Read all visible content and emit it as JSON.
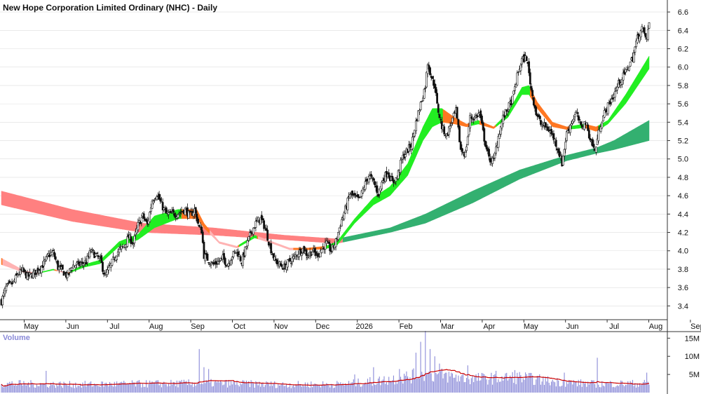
{
  "title": "New Hope Corporation Limited Ordinary (NHC) - Daily",
  "volume_label": "Volume",
  "colors": {
    "up_candle": "#ffffff",
    "down_candle": "#111111",
    "short_bull": "#22ee22",
    "short_bear": "#ff7722",
    "short_pale_bear": "#ffb3b3",
    "long_bull": "#33b070",
    "long_bear": "#ff8080",
    "volume_bar": "#8a8ad8",
    "volume_ma": "#cc0000",
    "grid": "#dddddd",
    "panel_border": "#333333"
  },
  "chart_data": {
    "type": "candlestick",
    "title": "New Hope Corporation Limited Ordinary (NHC) - Daily",
    "price_axis": {
      "ticks": [
        "3.4",
        "3.6",
        "3.8",
        "4.0",
        "4.2",
        "4.4",
        "4.6",
        "4.8",
        "5.0",
        "5.2",
        "5.4",
        "5.6",
        "5.8",
        "6.0",
        "6.2",
        "6.4",
        "6.6"
      ],
      "ylim": [
        3.25,
        6.7
      ]
    },
    "time_axis": {
      "labels": [
        "May",
        "Jun",
        "Jul",
        "Aug",
        "Sep",
        "Oct",
        "Nov",
        "Dec",
        "2026",
        "Feb",
        "Mar",
        "Apr",
        "May",
        "Jun",
        "Jul",
        "Aug",
        "Sep"
      ],
      "start_label_index": 0.7
    },
    "price_anchors": [
      [
        0,
        3.45
      ],
      [
        4,
        3.6
      ],
      [
        10,
        3.65
      ],
      [
        14,
        3.75
      ],
      [
        18,
        3.78
      ],
      [
        22,
        3.72
      ],
      [
        26,
        3.74
      ],
      [
        30,
        3.78
      ],
      [
        36,
        3.86
      ],
      [
        40,
        3.95
      ],
      [
        44,
        3.98
      ],
      [
        48,
        3.82
      ],
      [
        52,
        3.78
      ],
      [
        56,
        3.72
      ],
      [
        60,
        3.84
      ],
      [
        66,
        3.85
      ],
      [
        72,
        3.88
      ],
      [
        76,
        4.0
      ],
      [
        80,
        3.95
      ],
      [
        84,
        3.9
      ],
      [
        88,
        3.72
      ],
      [
        92,
        3.82
      ],
      [
        98,
        3.98
      ],
      [
        104,
        4.05
      ],
      [
        108,
        4.15
      ],
      [
        112,
        4.08
      ],
      [
        116,
        4.28
      ],
      [
        120,
        4.38
      ],
      [
        124,
        4.28
      ],
      [
        128,
        4.55
      ],
      [
        132,
        4.62
      ],
      [
        136,
        4.5
      ],
      [
        140,
        4.4
      ],
      [
        144,
        4.4
      ],
      [
        148,
        4.4
      ],
      [
        152,
        4.42
      ],
      [
        156,
        4.45
      ],
      [
        160,
        4.38
      ],
      [
        164,
        4.45
      ],
      [
        168,
        4.25
      ],
      [
        170,
        4.22
      ],
      [
        172,
        3.95
      ],
      [
        176,
        3.9
      ],
      [
        180,
        3.85
      ],
      [
        184,
        3.88
      ],
      [
        188,
        3.92
      ],
      [
        192,
        3.85
      ],
      [
        196,
        3.95
      ],
      [
        200,
        4.0
      ],
      [
        204,
        3.88
      ],
      [
        208,
        4.05
      ],
      [
        212,
        4.2
      ],
      [
        216,
        4.3
      ],
      [
        220,
        4.35
      ],
      [
        224,
        4.25
      ],
      [
        228,
        4.05
      ],
      [
        232,
        3.9
      ],
      [
        236,
        3.85
      ],
      [
        240,
        3.82
      ],
      [
        244,
        3.88
      ],
      [
        248,
        3.92
      ],
      [
        252,
        3.98
      ],
      [
        256,
        4.02
      ],
      [
        260,
        3.95
      ],
      [
        264,
        4.0
      ],
      [
        268,
        3.95
      ],
      [
        272,
        4.02
      ],
      [
        276,
        4.08
      ],
      [
        280,
        4.0
      ],
      [
        284,
        4.1
      ],
      [
        288,
        4.3
      ],
      [
        292,
        4.45
      ],
      [
        296,
        4.62
      ],
      [
        300,
        4.58
      ],
      [
        304,
        4.55
      ],
      [
        308,
        4.7
      ],
      [
        312,
        4.82
      ],
      [
        316,
        4.75
      ],
      [
        320,
        4.62
      ],
      [
        324,
        4.78
      ],
      [
        328,
        4.86
      ],
      [
        332,
        4.74
      ],
      [
        336,
        4.8
      ],
      [
        340,
        5.0
      ],
      [
        344,
        5.08
      ],
      [
        348,
        5.15
      ],
      [
        352,
        5.4
      ],
      [
        356,
        5.6
      ],
      [
        360,
        5.8
      ],
      [
        362,
        6.05
      ],
      [
        366,
        5.85
      ],
      [
        368,
        5.8
      ],
      [
        370,
        5.58
      ],
      [
        374,
        5.35
      ],
      [
        378,
        5.25
      ],
      [
        382,
        5.4
      ],
      [
        386,
        5.52
      ],
      [
        390,
        5.1
      ],
      [
        394,
        5.05
      ],
      [
        398,
        5.45
      ],
      [
        402,
        5.45
      ],
      [
        406,
        5.5
      ],
      [
        410,
        5.22
      ],
      [
        414,
        5.0
      ],
      [
        418,
        4.98
      ],
      [
        422,
        5.25
      ],
      [
        426,
        5.45
      ],
      [
        430,
        5.55
      ],
      [
        434,
        5.65
      ],
      [
        438,
        5.9
      ],
      [
        442,
        6.08
      ],
      [
        446,
        6.1
      ],
      [
        450,
        5.75
      ],
      [
        454,
        5.5
      ],
      [
        458,
        5.38
      ],
      [
        462,
        5.35
      ],
      [
        466,
        5.3
      ],
      [
        470,
        5.2
      ],
      [
        474,
        5.05
      ],
      [
        476,
        4.95
      ],
      [
        480,
        5.28
      ],
      [
        484,
        5.4
      ],
      [
        488,
        5.5
      ],
      [
        492,
        5.35
      ],
      [
        496,
        5.4
      ],
      [
        500,
        5.22
      ],
      [
        504,
        5.08
      ],
      [
        508,
        5.35
      ],
      [
        512,
        5.5
      ],
      [
        516,
        5.6
      ],
      [
        520,
        5.7
      ],
      [
        524,
        5.82
      ],
      [
        528,
        5.9
      ],
      [
        532,
        6.0
      ],
      [
        536,
        6.1
      ],
      [
        540,
        6.32
      ],
      [
        544,
        6.42
      ],
      [
        548,
        6.3
      ],
      [
        550,
        6.48
      ]
    ],
    "short_band": {
      "anchors": [
        [
          0,
          3.92,
          3.85
        ],
        [
          20,
          3.78,
          3.76
        ],
        [
          30,
          3.76,
          3.75
        ],
        [
          44,
          3.8,
          3.79
        ],
        [
          56,
          3.76,
          3.75
        ],
        [
          70,
          3.85,
          3.82
        ],
        [
          84,
          3.9,
          3.86
        ],
        [
          100,
          4.1,
          4.05
        ],
        [
          116,
          4.18,
          4.12
        ],
        [
          130,
          4.38,
          4.25
        ],
        [
          150,
          4.45,
          4.35
        ],
        [
          166,
          4.45,
          4.35
        ],
        [
          172,
          4.3,
          4.25
        ],
        [
          185,
          4.1,
          4.08
        ],
        [
          200,
          4.05,
          4.03
        ],
        [
          215,
          4.17,
          4.14
        ],
        [
          230,
          4.1,
          4.08
        ],
        [
          245,
          4.03,
          4.01
        ],
        [
          260,
          4.03,
          4.01
        ],
        [
          275,
          4.05,
          4.02
        ],
        [
          285,
          4.1,
          4.06
        ],
        [
          300,
          4.35,
          4.3
        ],
        [
          316,
          4.58,
          4.5
        ],
        [
          330,
          4.7,
          4.6
        ],
        [
          345,
          4.95,
          4.82
        ],
        [
          358,
          5.35,
          5.2
        ],
        [
          366,
          5.55,
          5.35
        ],
        [
          374,
          5.55,
          5.4
        ],
        [
          385,
          5.45,
          5.38
        ],
        [
          395,
          5.38,
          5.35
        ],
        [
          405,
          5.42,
          5.38
        ],
        [
          418,
          5.35,
          5.33
        ],
        [
          430,
          5.5,
          5.45
        ],
        [
          442,
          5.78,
          5.7
        ],
        [
          448,
          5.8,
          5.7
        ],
        [
          455,
          5.62,
          5.55
        ],
        [
          468,
          5.4,
          5.35
        ],
        [
          480,
          5.35,
          5.32
        ],
        [
          495,
          5.38,
          5.34
        ],
        [
          505,
          5.35,
          5.3
        ],
        [
          515,
          5.42,
          5.38
        ],
        [
          530,
          5.7,
          5.6
        ],
        [
          550,
          6.12,
          5.98
        ]
      ]
    },
    "long_band": {
      "anchors": [
        [
          0,
          4.65,
          4.5
        ],
        [
          60,
          4.45,
          4.32
        ],
        [
          120,
          4.3,
          4.2
        ],
        [
          180,
          4.25,
          4.17
        ],
        [
          240,
          4.17,
          4.12
        ],
        [
          285,
          4.13,
          4.08
        ],
        [
          330,
          4.25,
          4.2
        ],
        [
          360,
          4.4,
          4.3
        ],
        [
          400,
          4.65,
          4.52
        ],
        [
          440,
          4.88,
          4.78
        ],
        [
          480,
          5.04,
          4.98
        ],
        [
          505,
          5.12,
          5.06
        ],
        [
          520,
          5.2,
          5.1
        ],
        [
          550,
          5.42,
          5.2
        ]
      ]
    },
    "volume_axis": {
      "ticks": [
        "5M",
        "10M",
        "15M"
      ],
      "max": 17
    },
    "volume_profile": [
      [
        0,
        2.5
      ],
      [
        60,
        2.2
      ],
      [
        120,
        2.4
      ],
      [
        180,
        2.6
      ],
      [
        240,
        2.2
      ],
      [
        290,
        2.3
      ],
      [
        320,
        3.2
      ],
      [
        350,
        4.6
      ],
      [
        370,
        4.9
      ],
      [
        400,
        3.8
      ],
      [
        440,
        4.2
      ],
      [
        470,
        3.0
      ],
      [
        500,
        2.4
      ],
      [
        550,
        2.5
      ]
    ],
    "volume_spikes": [
      [
        38,
        6.0
      ],
      [
        168,
        12.0
      ],
      [
        172,
        7.0
      ],
      [
        176,
        6.5
      ],
      [
        300,
        5.0
      ],
      [
        316,
        7.0
      ],
      [
        338,
        6.5
      ],
      [
        352,
        11.0
      ],
      [
        356,
        14.0
      ],
      [
        360,
        17.0
      ],
      [
        364,
        12.0
      ],
      [
        368,
        10.0
      ],
      [
        372,
        8.0
      ],
      [
        396,
        7.5
      ],
      [
        420,
        6.0
      ],
      [
        436,
        6.2
      ],
      [
        478,
        5.5
      ],
      [
        506,
        9.6
      ],
      [
        548,
        5.5
      ]
    ]
  }
}
